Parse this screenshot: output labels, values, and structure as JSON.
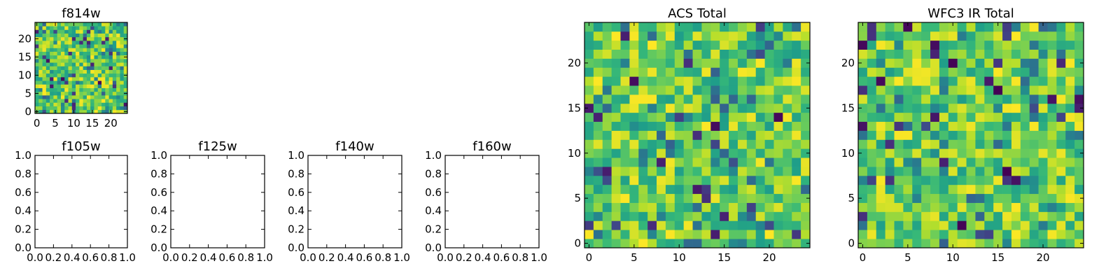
{
  "chart_data": [
    {
      "panel": "f814w",
      "type": "heatmap",
      "title": "f814w",
      "grid_size": 25,
      "xlim": [
        -0.5,
        24.5
      ],
      "ylim": [
        -0.5,
        24.5
      ],
      "xticks": [
        0,
        5,
        10,
        15,
        20
      ],
      "yticks": [
        0,
        5,
        10,
        15,
        20
      ],
      "colormap": "viridis",
      "seed": 814
    },
    {
      "panel": "f105w",
      "type": "heatmap",
      "title": "f105w",
      "empty": true,
      "xlim": [
        0,
        1
      ],
      "ylim": [
        0,
        1
      ],
      "xticks": [
        "0.0",
        "0.2",
        "0.4",
        "0.6",
        "0.8",
        "1.0"
      ],
      "yticks": [
        "0.0",
        "0.2",
        "0.4",
        "0.6",
        "0.8",
        "1.0"
      ]
    },
    {
      "panel": "f125w",
      "type": "heatmap",
      "title": "f125w",
      "empty": true,
      "xlim": [
        0,
        1
      ],
      "ylim": [
        0,
        1
      ],
      "xticks": [
        "0.0",
        "0.2",
        "0.4",
        "0.6",
        "0.8",
        "1.0"
      ],
      "yticks": [
        "0.0",
        "0.2",
        "0.4",
        "0.6",
        "0.8",
        "1.0"
      ]
    },
    {
      "panel": "f140w",
      "type": "heatmap",
      "title": "f140w",
      "empty": true,
      "xlim": [
        0,
        1
      ],
      "ylim": [
        0,
        1
      ],
      "xticks": [
        "0.0",
        "0.2",
        "0.4",
        "0.6",
        "0.8",
        "1.0"
      ],
      "yticks": [
        "0.0",
        "0.2",
        "0.4",
        "0.6",
        "0.8",
        "1.0"
      ]
    },
    {
      "panel": "f160w",
      "type": "heatmap",
      "title": "f160w",
      "empty": true,
      "xlim": [
        0,
        1
      ],
      "ylim": [
        0,
        1
      ],
      "xticks": [
        "0.0",
        "0.2",
        "0.4",
        "0.6",
        "0.8",
        "1.0"
      ],
      "yticks": [
        "0.0",
        "0.2",
        "0.4",
        "0.6",
        "0.8",
        "1.0"
      ]
    },
    {
      "panel": "acs-total",
      "type": "heatmap",
      "title": "ACS Total",
      "grid_size": 25,
      "xlim": [
        -0.5,
        24.5
      ],
      "ylim": [
        -0.5,
        24.5
      ],
      "xticks": [
        0,
        5,
        10,
        15,
        20
      ],
      "yticks": [
        0,
        5,
        10,
        15,
        20
      ],
      "colormap": "viridis",
      "seed": 4242
    },
    {
      "panel": "wfc3-ir-total",
      "type": "heatmap",
      "title": "WFC3 IR Total",
      "grid_size": 25,
      "xlim": [
        -0.5,
        24.5
      ],
      "ylim": [
        -0.5,
        24.5
      ],
      "xticks": [
        0,
        5,
        10,
        15,
        20
      ],
      "yticks": [
        0,
        5,
        10,
        15,
        20
      ],
      "colormap": "viridis",
      "seed": 3031
    }
  ]
}
